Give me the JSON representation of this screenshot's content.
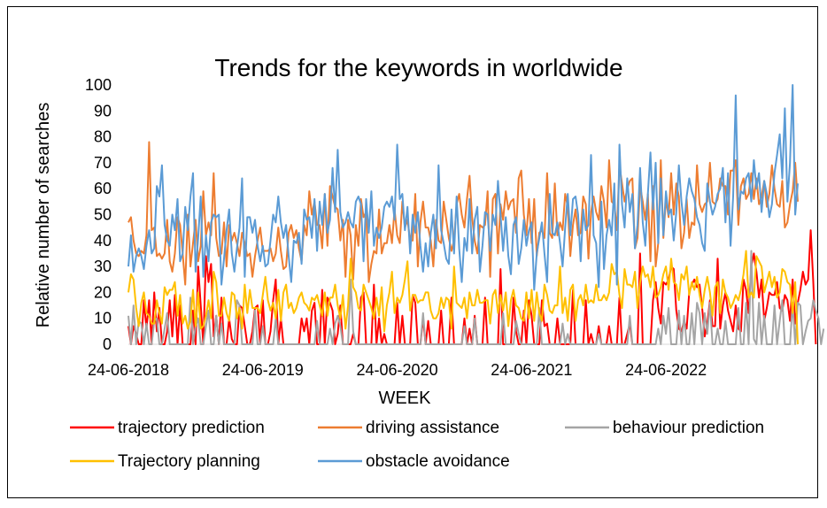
{
  "chart_data": {
    "type": "line",
    "title": "Trends for the keywords in worldwide",
    "xlabel": "WEEK",
    "ylabel": "Relative number of searches",
    "ylim": [
      0,
      100
    ],
    "yticks": [
      0,
      10,
      20,
      30,
      40,
      50,
      60,
      70,
      80,
      90,
      100
    ],
    "xtick_labels": [
      "24-06-2018",
      "24-06-2019",
      "24-06-2020",
      "24-06-2021",
      "24-06-2022"
    ],
    "xtick_week_index": [
      0,
      52,
      104,
      156,
      208
    ],
    "weeks": 260,
    "series": [
      {
        "name": "trajectory prediction",
        "color": "#ff0000",
        "values": [
          7,
          0,
          7,
          4,
          0,
          0,
          17,
          6,
          17,
          0,
          20,
          5,
          14,
          0,
          0,
          5,
          17,
          3,
          19,
          0,
          15,
          0,
          0,
          0,
          0,
          13,
          0,
          30,
          15,
          0,
          34,
          24,
          31,
          3,
          11,
          0,
          18,
          0,
          0,
          10,
          2,
          0,
          0,
          15,
          14,
          7,
          0,
          0,
          5,
          14,
          15,
          0,
          17,
          0,
          0,
          5,
          17,
          25,
          0,
          10,
          0,
          0,
          0,
          0,
          0,
          0,
          0,
          10,
          5,
          10,
          0,
          13,
          16,
          0,
          0,
          21,
          0,
          18,
          16,
          13,
          0,
          4,
          15,
          0,
          0,
          0,
          0,
          4,
          0,
          0,
          18,
          20,
          0,
          0,
          0,
          23,
          0,
          10,
          0,
          4,
          0,
          0,
          0,
          0,
          16,
          0,
          11,
          0,
          0,
          0,
          19,
          16,
          0,
          0,
          10,
          0,
          9,
          0,
          0,
          0,
          0,
          13,
          0,
          0,
          0,
          18,
          0,
          0,
          0,
          0,
          10,
          0,
          6,
          0,
          11,
          0,
          0,
          0,
          18,
          0,
          0,
          0,
          0,
          0,
          29,
          0,
          0,
          0,
          0,
          18,
          5,
          0,
          0,
          13,
          0,
          17,
          11,
          0,
          0,
          0,
          17,
          7,
          8,
          0,
          0,
          0,
          10,
          0,
          0,
          0,
          0,
          0,
          21,
          0,
          0,
          0,
          0,
          17,
          0,
          4,
          0,
          0,
          7,
          0,
          0,
          0,
          7,
          0,
          0,
          0,
          18,
          0,
          0,
          4,
          8,
          0,
          0,
          0,
          35,
          0,
          0,
          0,
          0,
          17,
          24,
          14,
          8,
          24,
          23,
          25,
          30,
          29,
          13,
          6,
          5,
          9,
          6,
          20,
          23,
          25,
          22,
          23,
          14,
          3,
          8,
          17,
          7,
          7,
          33,
          6,
          15,
          20,
          13,
          9,
          5,
          15,
          6,
          5,
          25,
          21,
          12,
          30,
          35,
          28,
          18,
          25,
          9,
          14,
          20,
          19,
          19,
          24,
          14,
          13,
          19,
          17,
          9,
          25,
          8,
          16,
          21,
          28,
          23,
          25,
          44,
          24,
          0
        ]
      },
      {
        "name": "driving assistance",
        "color": "#ed7d31",
        "values": [
          47,
          49,
          40,
          35,
          34,
          36,
          35,
          42,
          78,
          44,
          45,
          34,
          35,
          33,
          35,
          48,
          32,
          28,
          35,
          49,
          46,
          35,
          23,
          50,
          30,
          39,
          48,
          32,
          38,
          59,
          42,
          47,
          42,
          66,
          41,
          34,
          35,
          47,
          30,
          46,
          40,
          43,
          39,
          34,
          43,
          39,
          34,
          35,
          26,
          34,
          40,
          45,
          36,
          36,
          36,
          37,
          32,
          35,
          45,
          36,
          29,
          30,
          43,
          46,
          41,
          44,
          37,
          32,
          46,
          42,
          59,
          50,
          55,
          46,
          46,
          37,
          58,
          38,
          61,
          57,
          53,
          52,
          40,
          48,
          26,
          48,
          42,
          25,
          46,
          38,
          56,
          49,
          51,
          24,
          31,
          36,
          35,
          52,
          35,
          39,
          39,
          46,
          39,
          52,
          42,
          39,
          55,
          45,
          48,
          40,
          40,
          58,
          30,
          47,
          55,
          45,
          45,
          40,
          30,
          48,
          40,
          39,
          55,
          48,
          41,
          36,
          40,
          54,
          58,
          50,
          45,
          56,
          65,
          49,
          40,
          35,
          46,
          45,
          46,
          59,
          26,
          56,
          58,
          35,
          54,
          48,
          59,
          52,
          55,
          56,
          43,
          64,
          67,
          50,
          42,
          56,
          39,
          56,
          34,
          43,
          44,
          41,
          66,
          43,
          41,
          62,
          42,
          47,
          44,
          58,
          53,
          34,
          46,
          52,
          42,
          43,
          57,
          54,
          33,
          51,
          57,
          51,
          48,
          61,
          55,
          45,
          71,
          55,
          54,
          44,
          69,
          62,
          55,
          60,
          63,
          64,
          37,
          41,
          61,
          55,
          48,
          58,
          32,
          61,
          30,
          39,
          71,
          41,
          56,
          49,
          66,
          50,
          62,
          57,
          37,
          43,
          56,
          41,
          47,
          46,
          69,
          54,
          51,
          54,
          55,
          70,
          55,
          54,
          56,
          64,
          61,
          61,
          50,
          67,
          67,
          71,
          46,
          61,
          64,
          56,
          58,
          66,
          56,
          64,
          54,
          57,
          63,
          53,
          58,
          69,
          60,
          54,
          53,
          63,
          45,
          47,
          54,
          59,
          70,
          55
        ]
      },
      {
        "name": "behaviour prediction",
        "color": "#a5a5a5",
        "values": [
          11,
          0,
          15,
          0,
          9,
          8,
          0,
          8,
          0,
          0,
          9,
          10,
          0,
          0,
          6,
          12,
          0,
          0,
          0,
          0,
          0,
          0,
          0,
          0,
          18,
          0,
          7,
          10,
          0,
          0,
          7,
          13,
          0,
          0,
          11,
          0,
          8,
          0,
          0,
          0,
          0,
          0,
          17,
          15,
          0,
          0,
          0,
          0,
          0,
          13,
          0,
          0,
          7,
          0,
          0,
          0,
          0,
          10,
          0,
          0,
          0,
          0,
          0,
          0,
          0,
          0,
          0,
          0,
          0,
          0,
          0,
          0,
          0,
          9,
          0,
          0,
          0,
          0,
          6,
          0,
          8,
          11,
          7,
          0,
          0,
          0,
          25,
          5,
          0,
          0,
          0,
          0,
          0,
          0,
          0,
          0,
          0,
          0,
          0,
          0,
          0,
          0,
          0,
          0,
          0,
          0,
          0,
          0,
          0,
          0,
          0,
          0,
          0,
          0,
          12,
          0,
          0,
          0,
          0,
          0,
          0,
          0,
          0,
          0,
          0,
          0,
          0,
          0,
          0,
          0,
          7,
          0,
          0,
          0,
          10,
          0,
          0,
          0,
          0,
          0,
          0,
          0,
          0,
          0,
          0,
          12,
          0,
          0,
          0,
          0,
          9,
          4,
          0,
          0,
          0,
          0,
          0,
          0,
          0,
          14,
          0,
          0,
          0,
          0,
          0,
          0,
          0,
          0,
          8,
          0,
          4,
          0,
          0,
          0,
          0,
          0,
          0,
          0,
          0,
          0,
          0,
          0,
          4,
          0,
          0,
          0,
          0,
          0,
          0,
          0,
          0,
          0,
          0,
          0,
          11,
          0,
          0,
          0,
          0,
          0,
          0,
          0,
          0,
          0,
          0,
          6,
          0,
          11,
          4,
          14,
          0,
          0,
          0,
          13,
          0,
          11,
          0,
          0,
          12,
          0,
          16,
          12,
          0,
          12,
          4,
          16,
          0,
          0,
          6,
          0,
          0,
          9,
          0,
          0,
          0,
          0,
          14,
          0,
          0,
          16,
          0,
          36,
          2,
          0,
          16,
          0,
          11,
          0,
          0,
          0,
          15,
          0,
          9,
          17,
          0,
          0,
          0,
          16,
          0,
          16,
          15,
          0,
          5,
          9,
          10,
          17,
          13,
          10,
          0,
          6
        ]
      },
      {
        "name": "Trajectory planning",
        "color": "#ffc000",
        "values": [
          20,
          27,
          25,
          14,
          7,
          16,
          20,
          12,
          11,
          8,
          8,
          17,
          12,
          8,
          22,
          19,
          21,
          21,
          24,
          11,
          19,
          8,
          11,
          6,
          9,
          21,
          7,
          20,
          6,
          7,
          11,
          17,
          10,
          28,
          24,
          11,
          11,
          18,
          12,
          9,
          20,
          19,
          10,
          14,
          6,
          23,
          12,
          21,
          14,
          14,
          14,
          12,
          19,
          26,
          17,
          13,
          16,
          10,
          21,
          9,
          20,
          23,
          14,
          16,
          12,
          14,
          18,
          20,
          16,
          15,
          13,
          18,
          17,
          19,
          15,
          11,
          20,
          11,
          18,
          18,
          23,
          15,
          10,
          19,
          6,
          15,
          33,
          22,
          20,
          14,
          13,
          23,
          20,
          17,
          14,
          10,
          18,
          11,
          22,
          5,
          15,
          20,
          28,
          12,
          18,
          16,
          19,
          25,
          32,
          13,
          19,
          19,
          16,
          17,
          17,
          20,
          20,
          13,
          10,
          10,
          12,
          18,
          14,
          18,
          17,
          6,
          30,
          16,
          15,
          14,
          18,
          10,
          20,
          15,
          15,
          21,
          16,
          16,
          17,
          17,
          8,
          19,
          21,
          12,
          19,
          13,
          20,
          7,
          17,
          21,
          15,
          14,
          10,
          9,
          20,
          10,
          21,
          9,
          20,
          12,
          9,
          23,
          19,
          13,
          12,
          15,
          15,
          30,
          12,
          18,
          9,
          21,
          23,
          9,
          17,
          19,
          15,
          23,
          16,
          17,
          16,
          23,
          17,
          17,
          19,
          17,
          20,
          31,
          27,
          28,
          19,
          14,
          29,
          23,
          23,
          22,
          28,
          14,
          24,
          30,
          26,
          27,
          22,
          30,
          18,
          19,
          22,
          27,
          30,
          21,
          33,
          24,
          23,
          17,
          27,
          25,
          30,
          19,
          24,
          21,
          26,
          19,
          14,
          21,
          26,
          20,
          11,
          22,
          24,
          12,
          25,
          20,
          18,
          14,
          16,
          19,
          17,
          21,
          27,
          36,
          18,
          20,
          18,
          34,
          32,
          30,
          20,
          24,
          28,
          22,
          26,
          18,
          20,
          29,
          28,
          24,
          23,
          12,
          24,
          0
        ]
      },
      {
        "name": "obstacle avoidance",
        "color": "#5b9bd5",
        "values": [
          30,
          42,
          28,
          34,
          37,
          34,
          29,
          38,
          44,
          35,
          37,
          61,
          57,
          69,
          46,
          40,
          38,
          50,
          44,
          56,
          32,
          35,
          53,
          44,
          57,
          66,
          28,
          41,
          57,
          26,
          42,
          32,
          47,
          50,
          49,
          50,
          23,
          33,
          44,
          52,
          35,
          28,
          37,
          45,
          64,
          26,
          49,
          49,
          43,
          48,
          38,
          32,
          38,
          30,
          31,
          40,
          50,
          47,
          57,
          47,
          41,
          46,
          34,
          24,
          40,
          39,
          43,
          31,
          52,
          48,
          49,
          41,
          56,
          36,
          55,
          46,
          58,
          43,
          48,
          68,
          51,
          75,
          51,
          45,
          47,
          51,
          47,
          45,
          55,
          57,
          54,
          32,
          56,
          43,
          59,
          38,
          45,
          41,
          45,
          53,
          55,
          53,
          57,
          48,
          77,
          56,
          58,
          44,
          53,
          35,
          50,
          43,
          51,
          38,
          28,
          39,
          30,
          43,
          50,
          37,
          69,
          44,
          39,
          33,
          31,
          52,
          35,
          57,
          37,
          24,
          41,
          36,
          56,
          35,
          48,
          53,
          28,
          38,
          51,
          50,
          36,
          50,
          46,
          63,
          50,
          36,
          49,
          34,
          27,
          46,
          49,
          31,
          37,
          48,
          38,
          44,
          47,
          21,
          35,
          41,
          47,
          35,
          24,
          58,
          43,
          42,
          47,
          39,
          30,
          45,
          58,
          42,
          56,
          57,
          50,
          32,
          52,
          44,
          46,
          73,
          42,
          39,
          22,
          55,
          29,
          42,
          48,
          42,
          62,
          23,
          77,
          54,
          45,
          64,
          51,
          58,
          37,
          46,
          68,
          47,
          38,
          58,
          74,
          52,
          70,
          39,
          64,
          42,
          59,
          50,
          52,
          40,
          51,
          69,
          55,
          46,
          57,
          64,
          59,
          56,
          49,
          46,
          39,
          36,
          62,
          55,
          50,
          53,
          58,
          60,
          68,
          47,
          66,
          38,
          57,
          96,
          52,
          59,
          58,
          64,
          66,
          55,
          71,
          60,
          66,
          51,
          63,
          58,
          49,
          54,
          66,
          73,
          81,
          64,
          91,
          55,
          70,
          100,
          50,
          62
        ]
      }
    ]
  }
}
